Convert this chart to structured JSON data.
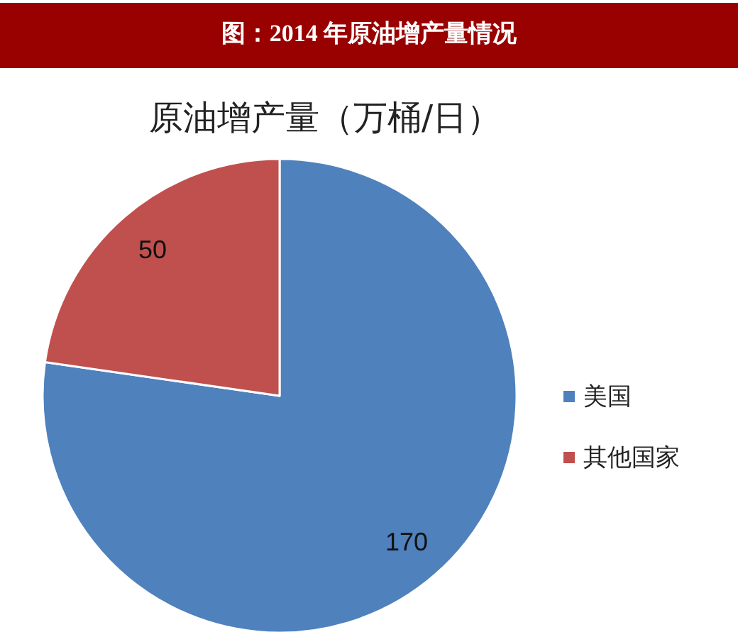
{
  "chart_data": {
    "type": "pie",
    "title": "图：2014 年原油增产量情况",
    "subtitle": "原油增产量（万桶/日）",
    "categories": [
      "美国",
      "其他国家"
    ],
    "values": [
      170,
      50
    ],
    "colors": [
      "#4f81bd",
      "#c0504d"
    ],
    "data_labels": true,
    "legend": "right"
  }
}
